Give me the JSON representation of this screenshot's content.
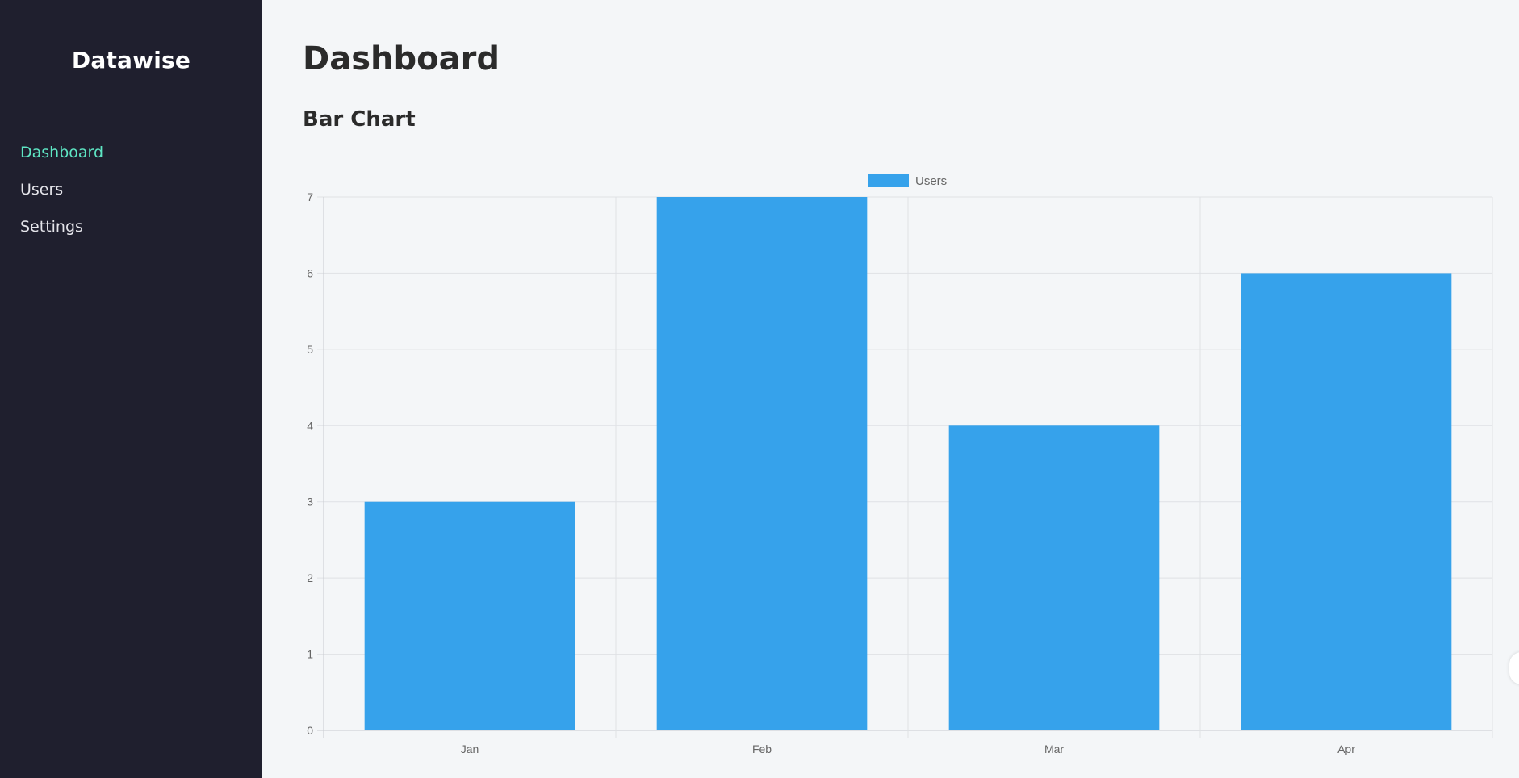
{
  "app": {
    "brand": "Datawise"
  },
  "sidebar": {
    "items": [
      {
        "label": "Dashboard",
        "active": true
      },
      {
        "label": "Users",
        "active": false
      },
      {
        "label": "Settings",
        "active": false
      }
    ]
  },
  "main": {
    "title": "Dashboard",
    "section_title": "Bar Chart"
  },
  "colors": {
    "sidebar_bg": "#1f1f2e",
    "active_nav": "#5ee6c4",
    "bar": "#36a2eb"
  },
  "chart_data": {
    "type": "bar",
    "categories": [
      "Jan",
      "Feb",
      "Mar",
      "Apr"
    ],
    "series": [
      {
        "name": "Users",
        "values": [
          3,
          7,
          4,
          6
        ],
        "color": "#36a2eb"
      }
    ],
    "ylim": [
      0,
      7
    ],
    "yticks": [
      "0",
      "1",
      "2",
      "3",
      "4",
      "5",
      "6",
      "7"
    ],
    "grid": true,
    "legend": "top-center"
  }
}
